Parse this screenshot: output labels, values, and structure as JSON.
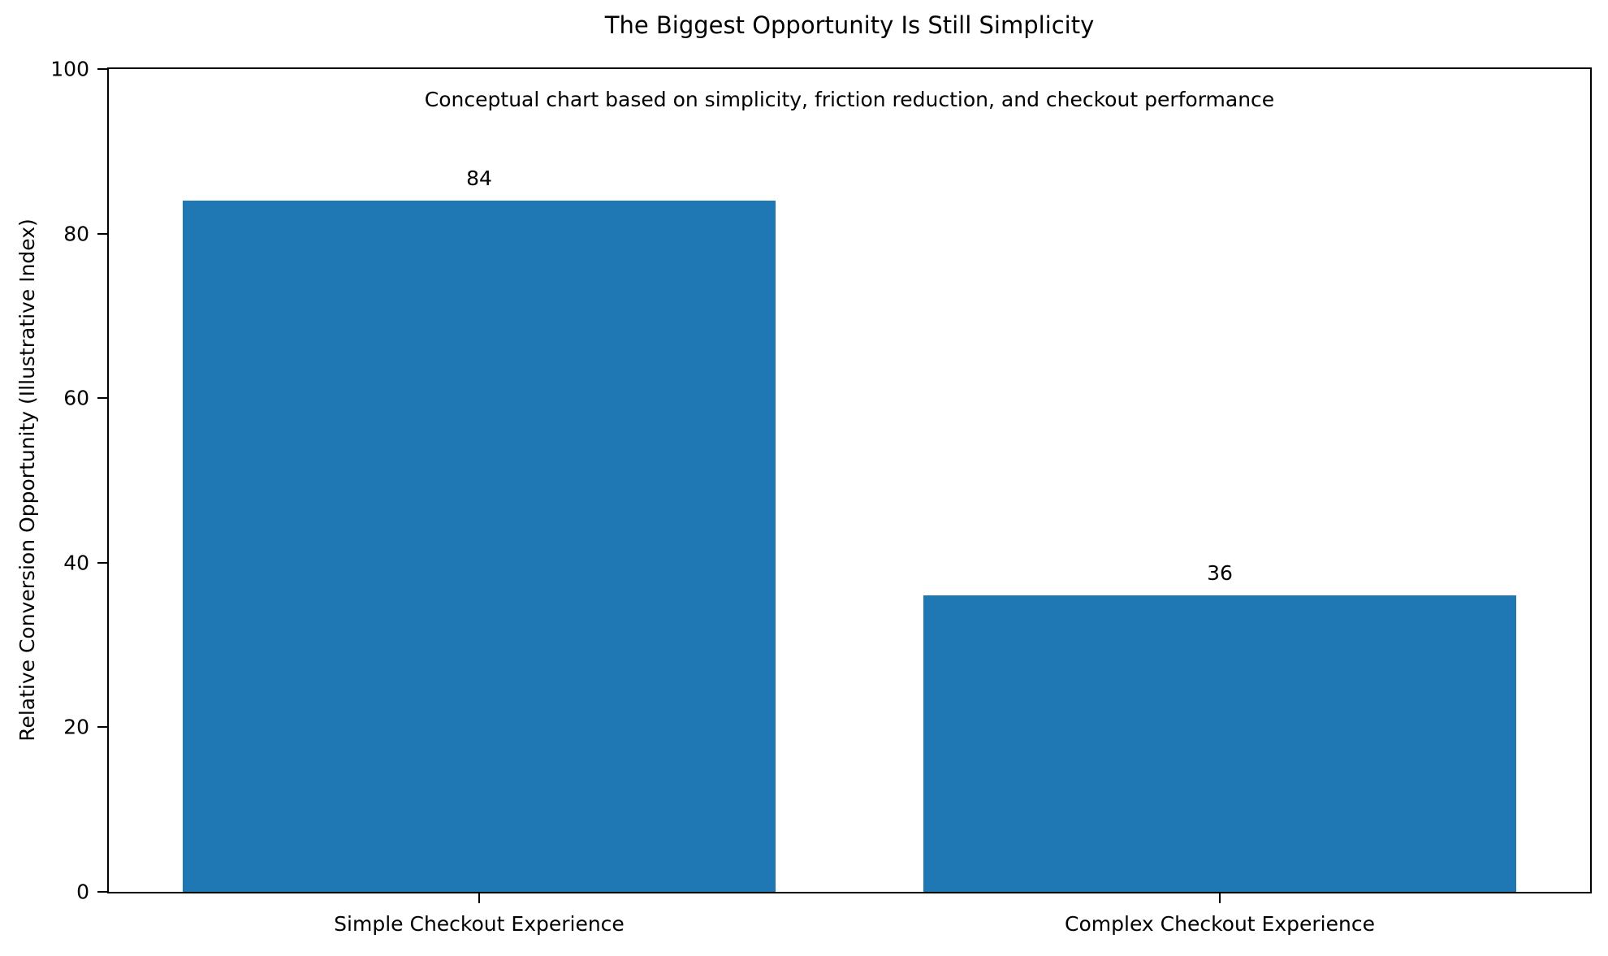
{
  "chart_data": {
    "type": "bar",
    "title": "The Biggest Opportunity Is Still Simplicity",
    "subtitle": "Conceptual chart based on simplicity, friction reduction, and checkout performance",
    "categories": [
      "Simple Checkout Experience",
      "Complex Checkout Experience"
    ],
    "values": [
      84,
      36
    ],
    "value_labels": [
      "84",
      "36"
    ],
    "xlabel": "",
    "ylabel": "Relative Conversion Opportunity (Illustrative Index)",
    "ylim": [
      0,
      100
    ],
    "yticks": [
      0,
      20,
      40,
      60,
      80,
      100
    ],
    "bar_color": "#1f77b4",
    "spine_color": "#000000",
    "text_color": "#000000",
    "background_color": "#ffffff",
    "grid": "off",
    "legend": "none",
    "bar_width_fraction_of_slot": 0.8
  }
}
